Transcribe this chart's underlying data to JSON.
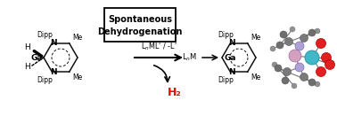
{
  "bg_color": "#ffffff",
  "box_text_line1": "Spontaneous",
  "box_text_line2": "Dehydrogenation",
  "arrow_label_top": "LₙML' / -L'",
  "arrow_label_bottom": "LₙM",
  "h2_label": "H₂",
  "h2_color": "#ff0000",
  "figsize": [
    3.78,
    1.31
  ],
  "dpi": 100
}
